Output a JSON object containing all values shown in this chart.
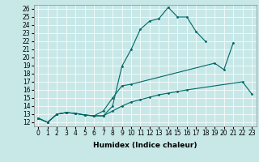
{
  "xlabel": "Humidex (Indice chaleur)",
  "bg_color": "#c8e8e8",
  "line_color": "#006666",
  "xlim": [
    -0.5,
    23.5
  ],
  "ylim": [
    11.5,
    26.5
  ],
  "xticks": [
    0,
    1,
    2,
    3,
    4,
    5,
    6,
    7,
    8,
    9,
    10,
    11,
    12,
    13,
    14,
    15,
    16,
    17,
    18,
    19,
    20,
    21,
    22,
    23
  ],
  "yticks": [
    12,
    13,
    14,
    15,
    16,
    17,
    18,
    19,
    20,
    21,
    22,
    23,
    24,
    25,
    26
  ],
  "line1_x": [
    0,
    1,
    2,
    3,
    4,
    5,
    6,
    7,
    8,
    9,
    10,
    11,
    12,
    13,
    14,
    15,
    16,
    17,
    18
  ],
  "line1_y": [
    12.5,
    12.0,
    13.0,
    13.2,
    13.1,
    12.9,
    12.8,
    12.8,
    14.0,
    18.9,
    21.0,
    23.5,
    24.5,
    24.8,
    26.2,
    25.0,
    25.0,
    23.2,
    22.0
  ],
  "line2_x": [
    0,
    1,
    2,
    3,
    4,
    5,
    6,
    7,
    8,
    9,
    10,
    19,
    20,
    21
  ],
  "line2_y": [
    12.5,
    12.0,
    13.0,
    13.2,
    13.1,
    12.9,
    12.8,
    13.4,
    15.0,
    16.5,
    16.7,
    19.3,
    18.5,
    21.8
  ],
  "line3_x": [
    0,
    1,
    2,
    3,
    4,
    5,
    6,
    7,
    8,
    9,
    10,
    11,
    12,
    13,
    14,
    15,
    16,
    22,
    23
  ],
  "line3_y": [
    12.5,
    12.0,
    13.0,
    13.2,
    13.1,
    12.9,
    12.8,
    12.8,
    13.4,
    14.0,
    14.5,
    14.8,
    15.1,
    15.4,
    15.6,
    15.8,
    16.0,
    17.0,
    15.5
  ],
  "tick_fontsize": 5.5,
  "xlabel_fontsize": 6.5,
  "grid_color": "#ffffff",
  "spine_color": "#888888"
}
